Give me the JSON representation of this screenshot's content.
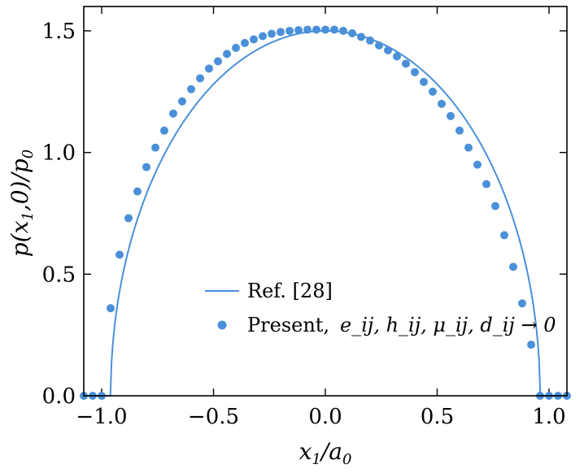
{
  "chart_data": {
    "type": "line",
    "xlabel": "x_1/a_0",
    "ylabel": "p(x_1,0)/p_0",
    "xlim": [
      -1.08,
      1.08
    ],
    "ylim": [
      0,
      1.6
    ],
    "xticks": [
      -1.0,
      -0.5,
      0.0,
      0.5,
      1.0
    ],
    "xtick_labels": [
      "−1.0",
      "−0.5",
      "0.0",
      "0.5",
      "1.0"
    ],
    "yticks": [
      0.0,
      0.5,
      1.0,
      1.5
    ],
    "ytick_labels": [
      "0.0",
      "0.5",
      "1.0",
      "1.5"
    ],
    "grid": false,
    "legend_position": "lower-center",
    "colors": {
      "series": "#4a90d9",
      "axis": "#000000"
    },
    "series": [
      {
        "name": "Ref. [28]",
        "kind": "line",
        "peak": 1.5,
        "half_width": 0.96,
        "x": [
          -1.08,
          -1.0,
          -0.96,
          -0.95,
          -0.93,
          -0.9,
          -0.85,
          -0.8,
          -0.7,
          -0.6,
          -0.5,
          -0.4,
          -0.3,
          -0.2,
          -0.1,
          0.0,
          0.1,
          0.2,
          0.3,
          0.4,
          0.5,
          0.6,
          0.7,
          0.8,
          0.85,
          0.9,
          0.93,
          0.95,
          0.96,
          1.0,
          1.08
        ],
        "y": [
          0,
          0,
          0,
          0.216,
          0.372,
          0.522,
          0.697,
          0.829,
          1.026,
          1.171,
          1.284,
          1.37,
          1.434,
          1.478,
          1.492,
          1.5,
          1.492,
          1.478,
          1.434,
          1.37,
          1.284,
          1.171,
          1.026,
          0.829,
          0.697,
          0.522,
          0.372,
          0.216,
          0,
          0,
          0
        ]
      },
      {
        "name": "Present,",
        "name_math": "e_ij, h_ij, μ_ij, d_ij → 0",
        "kind": "scatter",
        "x": [
          -1.08,
          -1.04,
          -1.0,
          -0.96,
          -0.92,
          -0.88,
          -0.84,
          -0.8,
          -0.76,
          -0.72,
          -0.68,
          -0.64,
          -0.6,
          -0.56,
          -0.52,
          -0.48,
          -0.44,
          -0.4,
          -0.36,
          -0.32,
          -0.28,
          -0.24,
          -0.2,
          -0.16,
          -0.12,
          -0.08,
          -0.04,
          0.0,
          0.04,
          0.08,
          0.12,
          0.16,
          0.2,
          0.24,
          0.28,
          0.32,
          0.36,
          0.4,
          0.44,
          0.48,
          0.52,
          0.56,
          0.6,
          0.64,
          0.68,
          0.72,
          0.76,
          0.8,
          0.84,
          0.88,
          0.92,
          0.96,
          1.0,
          1.04,
          1.08
        ],
        "y": [
          0,
          0,
          0,
          0.36,
          0.58,
          0.73,
          0.84,
          0.94,
          1.02,
          1.09,
          1.16,
          1.21,
          1.26,
          1.305,
          1.345,
          1.375,
          1.405,
          1.43,
          1.45,
          1.465,
          1.478,
          1.488,
          1.495,
          1.5,
          1.503,
          1.505,
          1.505,
          1.505,
          1.505,
          1.5,
          1.49,
          1.475,
          1.46,
          1.44,
          1.42,
          1.395,
          1.365,
          1.33,
          1.29,
          1.25,
          1.2,
          1.15,
          1.09,
          1.02,
          0.95,
          0.87,
          0.78,
          0.66,
          0.53,
          0.38,
          0.21,
          0.0,
          0,
          0,
          0
        ]
      }
    ]
  }
}
